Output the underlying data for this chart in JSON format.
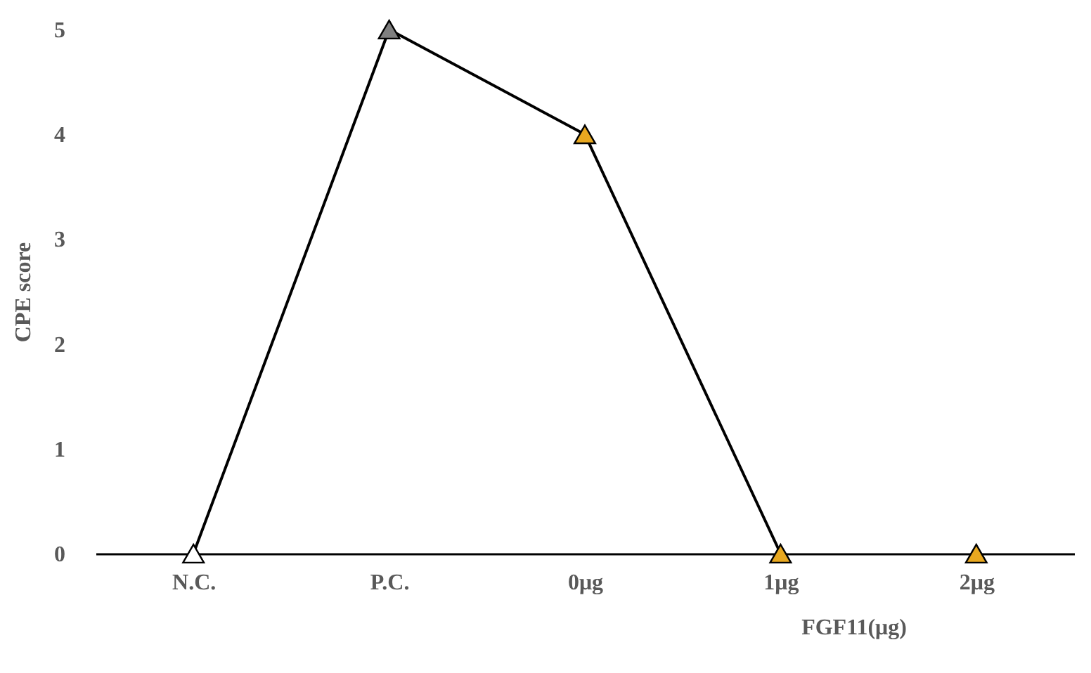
{
  "chart_data": {
    "type": "line",
    "xlabel": "FGF11(μg)",
    "ylabel": "CPE score",
    "categories": [
      "N.C.",
      "P.C.",
      "0μg",
      "1μg",
      "2μg"
    ],
    "series": [
      {
        "color": "#000000",
        "colors": [
          "#ffffff",
          "#7f7f7f",
          "#e8a820",
          "#e8a820",
          null
        ],
        "values": [
          0,
          5,
          4,
          0,
          null
        ]
      },
      {
        "type": "scatter",
        "color": "#e8a820",
        "values": [
          null,
          null,
          null,
          null,
          0
        ]
      }
    ],
    "ylim": [
      0,
      5
    ],
    "yticks": [
      0,
      1,
      2,
      3,
      4,
      5
    ],
    "marker": "triangle",
    "grid": false
  }
}
